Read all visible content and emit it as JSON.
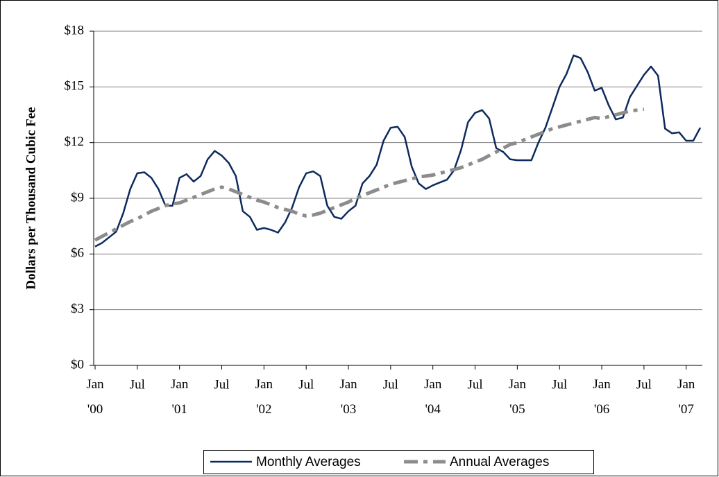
{
  "chart_data": {
    "type": "line",
    "y_label": "Dollars per Thousand Cubic Fee",
    "categories": [
      "Jan '00",
      null,
      null,
      null,
      null,
      null,
      "Jul",
      null,
      null,
      null,
      null,
      null,
      "Jan '01",
      null,
      null,
      null,
      null,
      null,
      "Jul",
      null,
      null,
      null,
      null,
      null,
      "Jan '02",
      null,
      null,
      null,
      null,
      null,
      "Jul",
      null,
      null,
      null,
      null,
      null,
      "Jan '03",
      null,
      null,
      null,
      null,
      null,
      "Jul",
      null,
      null,
      null,
      null,
      null,
      "Jan '04",
      null,
      null,
      null,
      null,
      null,
      "Jul",
      null,
      null,
      null,
      null,
      null,
      "Jan '05",
      null,
      null,
      null,
      null,
      null,
      "Jul",
      null,
      null,
      null,
      null,
      null,
      "Jan '06",
      null,
      null,
      null,
      null,
      null,
      "Jul",
      null,
      null,
      null,
      null,
      null,
      "Jan '07",
      null,
      null
    ],
    "series": [
      {
        "name": "Monthly Averages",
        "color": "#0d2a5c",
        "dashed": false,
        "values": [
          6.4,
          6.6,
          6.9,
          7.2,
          8.2,
          9.5,
          10.35,
          10.4,
          10.1,
          9.5,
          8.6,
          8.6,
          10.1,
          10.3,
          9.9,
          10.2,
          11.1,
          11.55,
          11.3,
          10.9,
          10.2,
          8.3,
          8.0,
          7.3,
          7.4,
          7.3,
          7.15,
          7.7,
          8.5,
          9.6,
          10.35,
          10.45,
          10.2,
          8.6,
          8.0,
          7.9,
          8.3,
          8.6,
          9.8,
          10.2,
          10.8,
          12.1,
          12.8,
          12.85,
          12.3,
          10.7,
          9.8,
          9.5,
          9.7,
          9.85,
          10.0,
          10.5,
          11.6,
          13.1,
          13.6,
          13.75,
          13.3,
          11.7,
          11.5,
          11.1,
          11.05,
          11.05,
          11.05,
          12.0,
          12.8,
          13.9,
          15.0,
          15.7,
          16.7,
          16.55,
          15.8,
          14.8,
          14.95,
          14.0,
          13.25,
          13.35,
          14.45,
          15.05,
          15.65,
          16.1,
          15.6,
          12.75,
          12.5,
          12.55,
          12.1,
          12.1,
          12.8
        ]
      },
      {
        "name": "Annual Averages",
        "color": "#8c8c8c",
        "dashed": true,
        "values": [
          6.75,
          6.95,
          7.15,
          7.35,
          7.55,
          7.75,
          7.9,
          8.1,
          8.3,
          8.45,
          8.6,
          8.7,
          8.75,
          8.9,
          9.05,
          9.2,
          9.35,
          9.5,
          9.6,
          9.5,
          9.35,
          9.2,
          9.05,
          8.9,
          8.8,
          8.65,
          8.5,
          8.4,
          8.3,
          8.15,
          8.05,
          8.1,
          8.2,
          8.35,
          8.5,
          8.65,
          8.8,
          9.0,
          9.15,
          9.3,
          9.45,
          9.6,
          9.75,
          9.85,
          9.95,
          10.05,
          10.15,
          10.2,
          10.25,
          10.35,
          10.45,
          10.55,
          10.65,
          10.8,
          10.95,
          11.1,
          11.3,
          11.5,
          11.7,
          11.9,
          12.0,
          12.15,
          12.3,
          12.45,
          12.6,
          12.75,
          12.85,
          12.95,
          13.05,
          13.15,
          13.25,
          13.35,
          13.3,
          13.4,
          13.5,
          13.6,
          13.7,
          13.75,
          13.8,
          null,
          null,
          null,
          null,
          null,
          null,
          null,
          null
        ]
      }
    ],
    "ylim": [
      0,
      18
    ],
    "yticks": [
      {
        "value": 0,
        "label": "$0"
      },
      {
        "value": 3,
        "label": "$3"
      },
      {
        "value": 6,
        "label": "$6"
      },
      {
        "value": 9,
        "label": "$9"
      },
      {
        "value": 12,
        "label": "$12"
      },
      {
        "value": 15,
        "label": "$15"
      },
      {
        "value": 18,
        "label": "$18"
      }
    ],
    "grid": true,
    "legend": "bottom"
  }
}
